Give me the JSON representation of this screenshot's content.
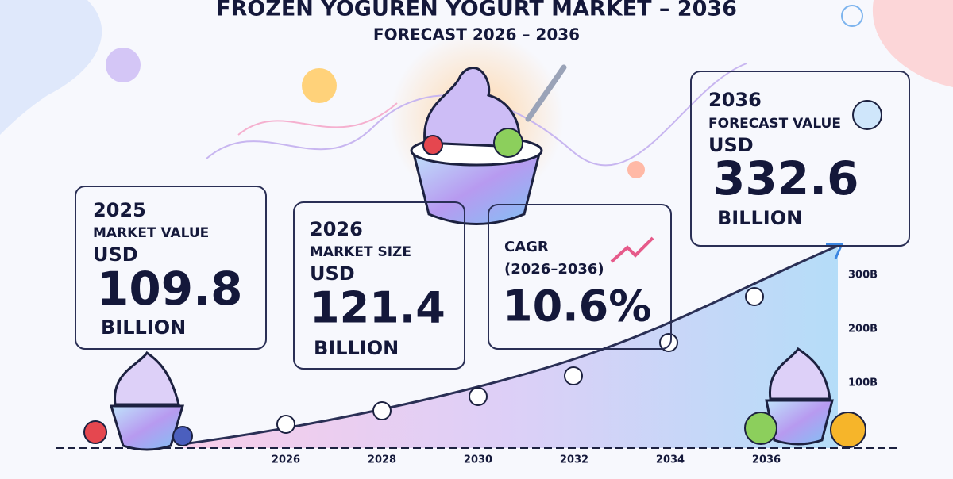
{
  "header": {
    "title": "FROZEN YOGUREN YOGURT MARKET – 2036",
    "subtitle": "FORECAST  2026 – 2036"
  },
  "cards": [
    {
      "year": "2025",
      "label": "MARKET VALUE",
      "currency": "USD",
      "value": "109.8",
      "unit": "BILLION"
    },
    {
      "year": "2026",
      "label": "MARKET SIZE",
      "currency": "USD",
      "value": "121.4",
      "unit": "BILLION"
    },
    {
      "label": "CAGR",
      "period": "(2026–2036)",
      "value": "10.6%"
    },
    {
      "year": "2036",
      "label": "FORECAST VALUE",
      "currency": "USD",
      "value": "332.6",
      "unit": "BILLION"
    }
  ],
  "timeline": {
    "x_labels": [
      "2026",
      "2028",
      "2030",
      "2032",
      "2034",
      "2036"
    ],
    "y_labels": [
      "300B",
      "200B",
      "100B"
    ]
  }
}
